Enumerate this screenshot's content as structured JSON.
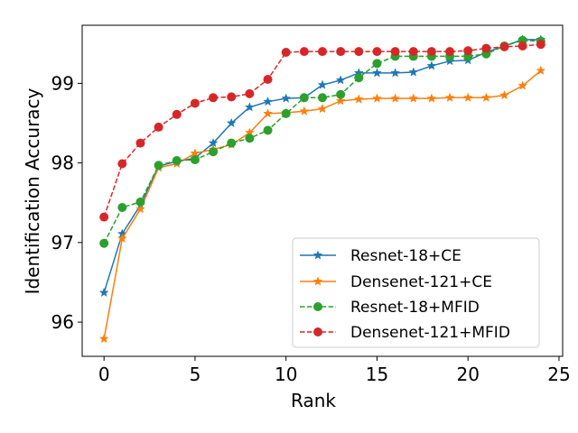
{
  "chart_data": {
    "type": "line",
    "title": "",
    "xlabel": "Rank",
    "ylabel": "Identification Accuracy",
    "xlim": [
      -1.2,
      25.2
    ],
    "ylim": [
      95.57,
      99.73
    ],
    "xticks": [
      0,
      5,
      10,
      15,
      20,
      25
    ],
    "yticks": [
      96,
      97,
      98,
      99
    ],
    "x": [
      0,
      1,
      2,
      3,
      4,
      5,
      6,
      7,
      8,
      9,
      10,
      11,
      12,
      13,
      14,
      15,
      16,
      17,
      18,
      19,
      20,
      21,
      22,
      23,
      24
    ],
    "legend_position": "lower-right",
    "series": [
      {
        "name": "Resnet-18+CE",
        "color": "#1f77b4",
        "dashed": false,
        "marker": "star",
        "values": [
          96.37,
          97.11,
          97.47,
          97.96,
          98.02,
          98.06,
          98.25,
          98.5,
          98.7,
          98.77,
          98.81,
          98.82,
          98.98,
          99.04,
          99.13,
          99.13,
          99.13,
          99.14,
          99.22,
          99.28,
          99.29,
          99.39,
          99.47,
          99.55,
          99.55
        ]
      },
      {
        "name": "Densenet-121+CE",
        "color": "#ff7f0e",
        "dashed": false,
        "marker": "star",
        "values": [
          95.79,
          97.05,
          97.42,
          97.94,
          97.99,
          98.12,
          98.17,
          98.23,
          98.38,
          98.62,
          98.63,
          98.65,
          98.68,
          98.78,
          98.8,
          98.81,
          98.81,
          98.81,
          98.81,
          98.82,
          98.82,
          98.82,
          98.85,
          98.97,
          99.16
        ]
      },
      {
        "name": "Resnet-18+MFID",
        "color": "#2ca02c",
        "dashed": true,
        "marker": "circle",
        "values": [
          96.99,
          97.44,
          97.51,
          97.97,
          98.03,
          98.04,
          98.14,
          98.25,
          98.31,
          98.41,
          98.62,
          98.82,
          98.82,
          98.86,
          99.07,
          99.25,
          99.34,
          99.34,
          99.34,
          99.34,
          99.34,
          99.37,
          99.47,
          99.54,
          99.53
        ]
      },
      {
        "name": "Densenet-121+MFID",
        "color": "#d62728",
        "dashed": true,
        "marker": "circle",
        "values": [
          97.32,
          97.99,
          98.25,
          98.45,
          98.61,
          98.75,
          98.82,
          98.83,
          98.87,
          99.05,
          99.39,
          99.4,
          99.4,
          99.4,
          99.4,
          99.4,
          99.4,
          99.4,
          99.4,
          99.4,
          99.41,
          99.44,
          99.46,
          99.47,
          99.49
        ]
      }
    ]
  }
}
